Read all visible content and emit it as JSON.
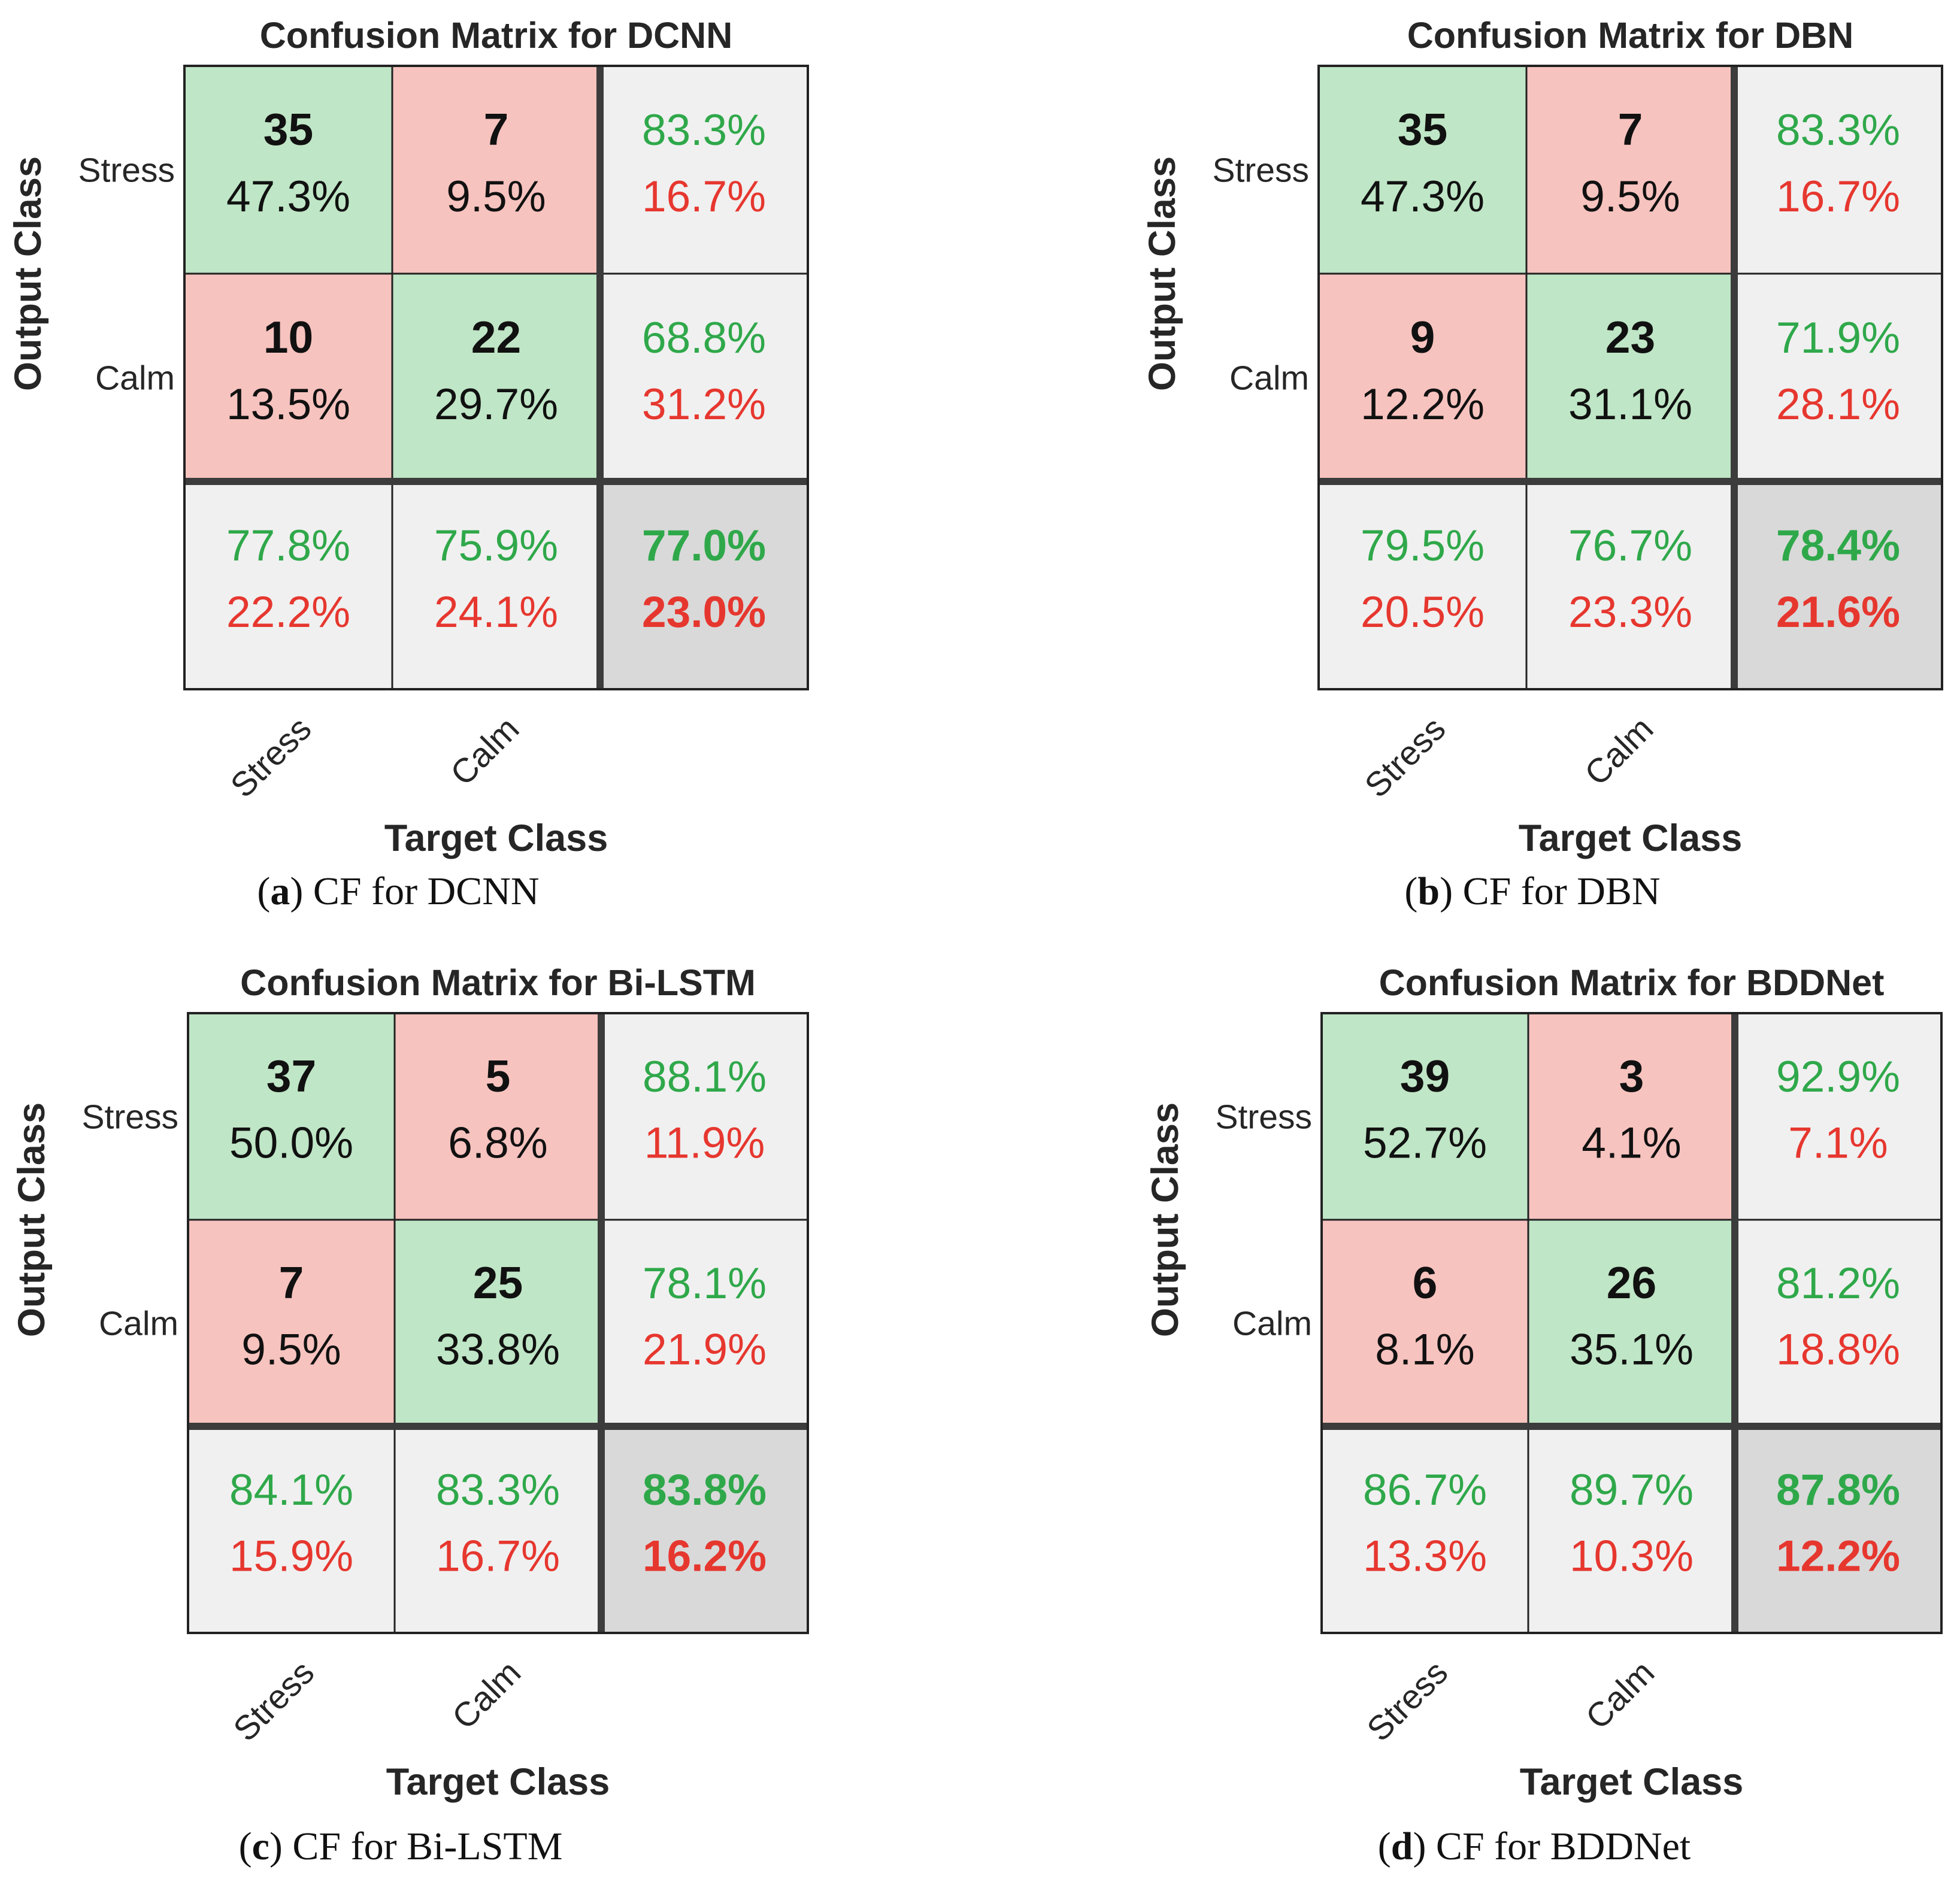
{
  "colors": {
    "correct_bg": "#bfe6c6",
    "wrong_bg": "#f7c3bf",
    "summary_bg": "#f0f0f0",
    "overall_bg": "#d9d9d9",
    "green_text": "#2fa84a",
    "red_text": "#e6372f",
    "grid": "#222222",
    "thick_grid": "#3c3c3c"
  },
  "chart_data": [
    {
      "type": "heatmap",
      "title": "Confusion Matrix for DCNN",
      "xlabel": "Target Class",
      "ylabel": "Output Class",
      "classes": [
        "Stress",
        "Calm"
      ],
      "counts": [
        [
          35,
          7
        ],
        [
          10,
          22
        ]
      ],
      "cell_percents": [
        [
          "47.3%",
          "9.5%"
        ],
        [
          "13.5%",
          "29.7%"
        ]
      ],
      "row_summary": [
        [
          "83.3%",
          "16.7%"
        ],
        [
          "68.8%",
          "31.2%"
        ]
      ],
      "col_summary": [
        [
          "77.8%",
          "22.2%"
        ],
        [
          "75.9%",
          "24.1%"
        ]
      ],
      "overall": [
        "77.0%",
        "23.0%"
      ],
      "caption_letter": "a",
      "caption_text": "CF for DCNN"
    },
    {
      "type": "heatmap",
      "title": "Confusion Matrix for DBN",
      "xlabel": "Target Class",
      "ylabel": "Output Class",
      "classes": [
        "Stress",
        "Calm"
      ],
      "counts": [
        [
          35,
          7
        ],
        [
          9,
          23
        ]
      ],
      "cell_percents": [
        [
          "47.3%",
          "9.5%"
        ],
        [
          "12.2%",
          "31.1%"
        ]
      ],
      "row_summary": [
        [
          "83.3%",
          "16.7%"
        ],
        [
          "71.9%",
          "28.1%"
        ]
      ],
      "col_summary": [
        [
          "79.5%",
          "20.5%"
        ],
        [
          "76.7%",
          "23.3%"
        ]
      ],
      "overall": [
        "78.4%",
        "21.6%"
      ],
      "caption_letter": "b",
      "caption_text": "CF for DBN"
    },
    {
      "type": "heatmap",
      "title": "Confusion Matrix for Bi-LSTM",
      "xlabel": "Target Class",
      "ylabel": "Output Class",
      "classes": [
        "Stress",
        "Calm"
      ],
      "counts": [
        [
          37,
          5
        ],
        [
          7,
          25
        ]
      ],
      "cell_percents": [
        [
          "50.0%",
          "6.8%"
        ],
        [
          "9.5%",
          "33.8%"
        ]
      ],
      "row_summary": [
        [
          "88.1%",
          "11.9%"
        ],
        [
          "78.1%",
          "21.9%"
        ]
      ],
      "col_summary": [
        [
          "84.1%",
          "15.9%"
        ],
        [
          "83.3%",
          "16.7%"
        ]
      ],
      "overall": [
        "83.8%",
        "16.2%"
      ],
      "caption_letter": "c",
      "caption_text": "CF for Bi-LSTM"
    },
    {
      "type": "heatmap",
      "title": "Confusion Matrix for BDDNet",
      "xlabel": "Target Class",
      "ylabel": "Output Class",
      "classes": [
        "Stress",
        "Calm"
      ],
      "counts": [
        [
          39,
          3
        ],
        [
          6,
          26
        ]
      ],
      "cell_percents": [
        [
          "52.7%",
          "4.1%"
        ],
        [
          "8.1%",
          "35.1%"
        ]
      ],
      "row_summary": [
        [
          "92.9%",
          "7.1%"
        ],
        [
          "81.2%",
          "18.8%"
        ]
      ],
      "col_summary": [
        [
          "86.7%",
          "13.3%"
        ],
        [
          "89.7%",
          "10.3%"
        ]
      ],
      "overall": [
        "87.8%",
        "12.2%"
      ],
      "caption_letter": "d",
      "caption_text": "CF for BDDNet"
    }
  ]
}
